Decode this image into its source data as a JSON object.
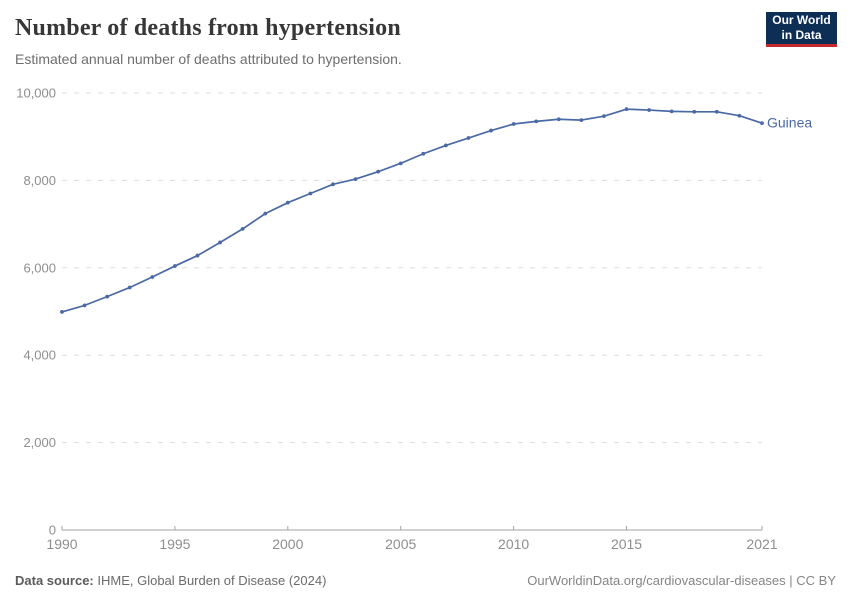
{
  "header": {
    "title": "Number of deaths from hypertension",
    "subtitle": "Estimated annual number of deaths attributed to hypertension."
  },
  "logo": {
    "line1": "Our World",
    "line2": "in Data",
    "bg_color": "#0d2e55",
    "bar_color": "#c5292e"
  },
  "chart_data": {
    "type": "line",
    "title": "Number of deaths from hypertension",
    "subtitle": "Estimated annual number of deaths attributed to hypertension.",
    "x": [
      1990,
      1991,
      1992,
      1993,
      1994,
      1995,
      1996,
      1997,
      1998,
      1999,
      2000,
      2001,
      2002,
      2003,
      2004,
      2005,
      2006,
      2007,
      2008,
      2009,
      2010,
      2011,
      2012,
      2013,
      2014,
      2015,
      2016,
      2017,
      2018,
      2019,
      2020,
      2021
    ],
    "series": [
      {
        "name": "Guinea",
        "color": "#4a69a5",
        "values": [
          4990,
          5140,
          5340,
          5550,
          5790,
          6040,
          6280,
          6580,
          6890,
          7240,
          7490,
          7700,
          7910,
          8030,
          8200,
          8390,
          8610,
          8800,
          8970,
          9140,
          9290,
          9350,
          9400,
          9380,
          9470,
          9630,
          9610,
          9580,
          9570,
          9570,
          9480,
          9310
        ]
      }
    ],
    "xlabel": "",
    "ylabel": "",
    "xlim": [
      1990,
      2021
    ],
    "ylim": [
      0,
      10000
    ],
    "xticks": [
      1990,
      1995,
      2000,
      2005,
      2010,
      2015,
      2021
    ],
    "yticks": [
      0,
      2000,
      4000,
      6000,
      8000,
      10000
    ],
    "grid": "horizontal dashed",
    "legend_position": "end-of-line label",
    "end_label": "Guinea"
  },
  "footer": {
    "source_label": "Data source:",
    "source_text": " IHME, Global Burden of Disease (2024)",
    "right_text": "OurWorldinData.org/cardiovascular-diseases | CC BY"
  },
  "colors": {
    "line": "#4a69a5",
    "grid": "#dddddd",
    "axis": "#a3a3a3",
    "tick_label": "#8e8e8e",
    "title_text": "#373737",
    "subtitle_text": "#6e6e6e"
  }
}
